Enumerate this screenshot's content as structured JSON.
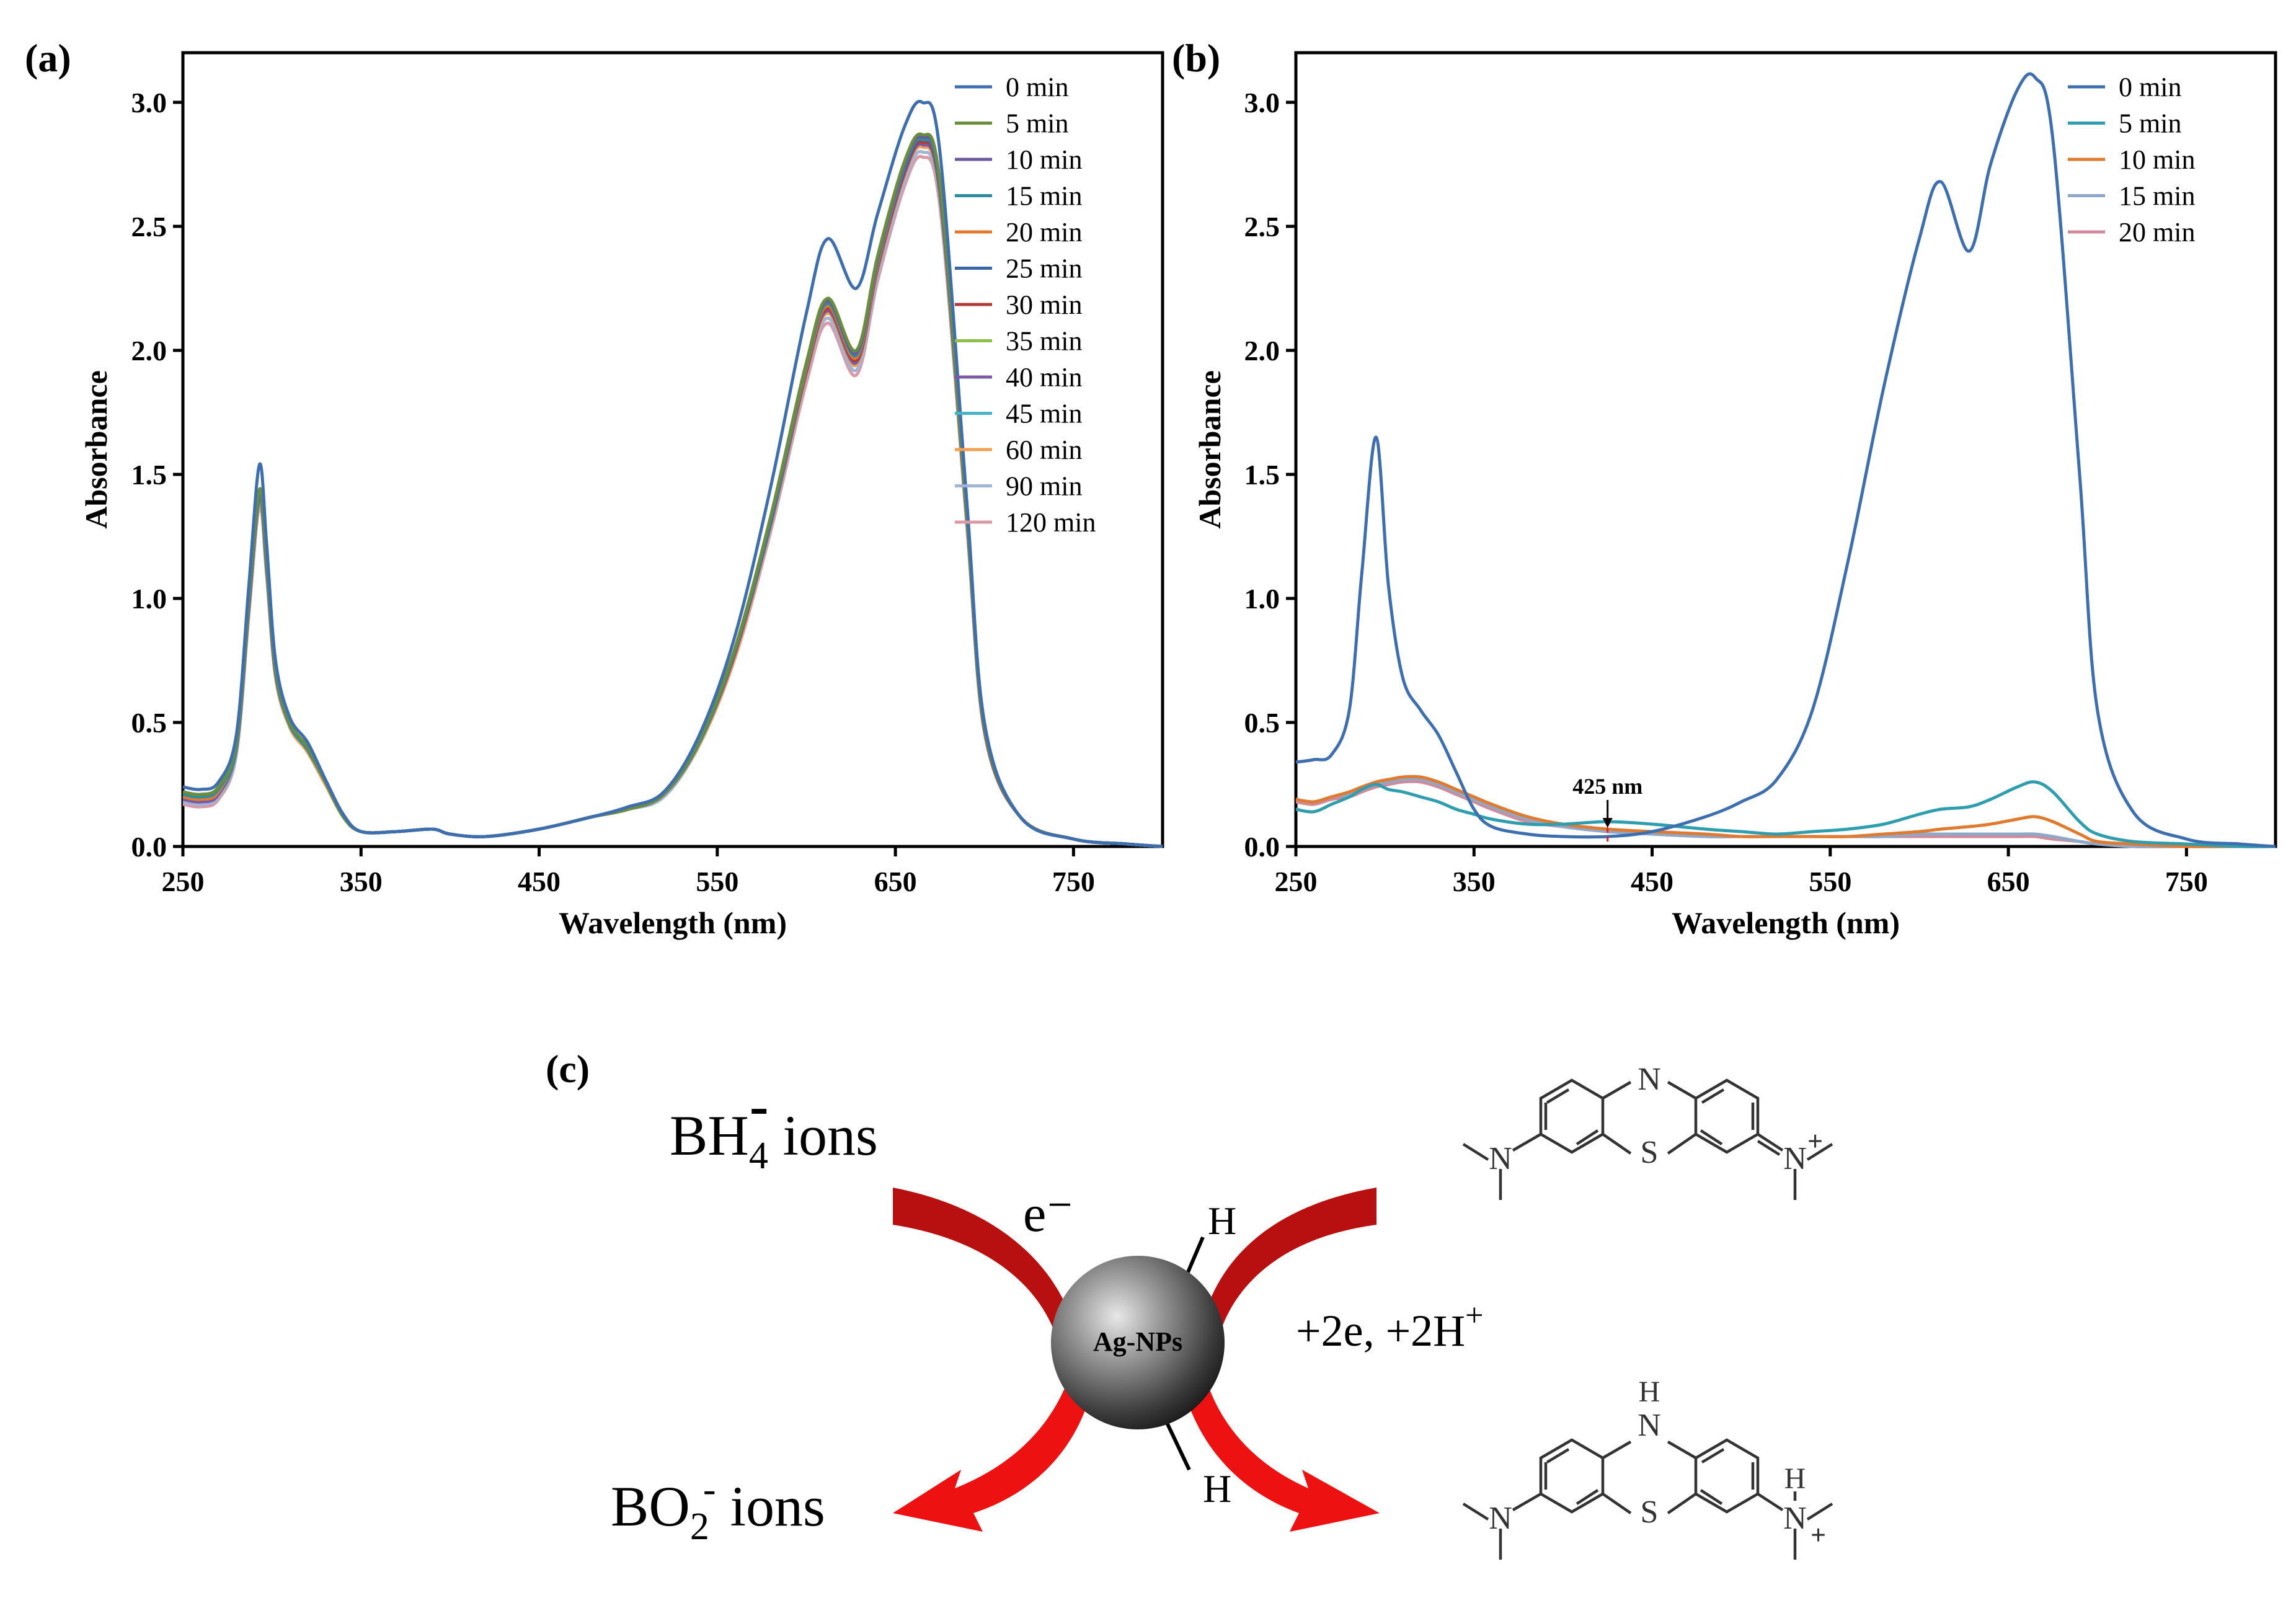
{
  "chart_data": [
    {
      "panel": "(a)",
      "type": "line",
      "xlabel": "Wavelength (nm)",
      "ylabel": "Absorbance",
      "xlim": [
        250,
        800
      ],
      "ylim": [
        0,
        3.2
      ],
      "xticks": [
        250,
        350,
        450,
        550,
        650,
        750
      ],
      "xtick_labels": [
        "250",
        "350",
        "450",
        "550",
        "650",
        "750"
      ],
      "yticks": [
        0,
        0.5,
        1.0,
        1.5,
        2.0,
        2.5,
        3.0
      ],
      "ytick_labels": [
        "0.0",
        "0.5",
        "1.0",
        "1.5",
        "2.0",
        "2.5",
        "3.0"
      ],
      "legend_position": "top-right",
      "x": [
        250,
        260,
        270,
        280,
        287,
        293,
        297,
        302,
        310,
        320,
        330,
        340,
        350,
        370,
        390,
        400,
        420,
        450,
        480,
        500,
        520,
        540,
        560,
        580,
        600,
        612,
        628,
        640,
        655,
        665,
        675,
        690,
        700,
        720,
        750,
        780,
        800
      ],
      "series": [
        {
          "name": "0 min",
          "color": "#3d6eb0",
          "values": [
            0.24,
            0.23,
            0.26,
            0.45,
            1.05,
            1.54,
            1.22,
            0.75,
            0.52,
            0.42,
            0.27,
            0.13,
            0.06,
            0.06,
            0.07,
            0.05,
            0.04,
            0.07,
            0.12,
            0.16,
            0.22,
            0.45,
            0.85,
            1.45,
            2.15,
            2.45,
            2.25,
            2.55,
            2.9,
            3.0,
            2.8,
            1.4,
            0.5,
            0.12,
            0.03,
            0.01,
            0.0
          ]
        },
        {
          "name": "5 min",
          "color": "#6b8e3e",
          "values": [
            0.22,
            0.21,
            0.24,
            0.42,
            1.0,
            1.44,
            1.16,
            0.72,
            0.5,
            0.4,
            0.26,
            0.12,
            0.06,
            0.06,
            0.07,
            0.05,
            0.04,
            0.07,
            0.12,
            0.15,
            0.21,
            0.43,
            0.8,
            1.33,
            1.95,
            2.21,
            2.0,
            2.38,
            2.76,
            2.87,
            2.68,
            1.35,
            0.48,
            0.12,
            0.03,
            0.01,
            0.0
          ]
        },
        {
          "name": "10 min",
          "color": "#6a5a9c",
          "values": [
            0.22,
            0.21,
            0.24,
            0.42,
            0.99,
            1.43,
            1.15,
            0.72,
            0.5,
            0.4,
            0.26,
            0.12,
            0.06,
            0.06,
            0.07,
            0.05,
            0.04,
            0.07,
            0.12,
            0.15,
            0.21,
            0.43,
            0.8,
            1.33,
            1.95,
            2.2,
            1.99,
            2.37,
            2.75,
            2.86,
            2.67,
            1.35,
            0.48,
            0.12,
            0.03,
            0.01,
            0.0
          ]
        },
        {
          "name": "15 min",
          "color": "#2e8e9e",
          "values": [
            0.21,
            0.2,
            0.23,
            0.41,
            0.98,
            1.42,
            1.14,
            0.71,
            0.49,
            0.39,
            0.26,
            0.12,
            0.06,
            0.06,
            0.07,
            0.05,
            0.04,
            0.07,
            0.12,
            0.15,
            0.21,
            0.42,
            0.79,
            1.32,
            1.94,
            2.19,
            1.98,
            2.36,
            2.74,
            2.85,
            2.66,
            1.34,
            0.48,
            0.12,
            0.03,
            0.01,
            0.0
          ]
        },
        {
          "name": "20 min",
          "color": "#e07a2e",
          "values": [
            0.2,
            0.19,
            0.22,
            0.41,
            0.98,
            1.42,
            1.14,
            0.71,
            0.49,
            0.39,
            0.26,
            0.12,
            0.06,
            0.06,
            0.07,
            0.05,
            0.04,
            0.07,
            0.12,
            0.15,
            0.21,
            0.42,
            0.79,
            1.32,
            1.93,
            2.18,
            1.97,
            2.35,
            2.74,
            2.86,
            2.66,
            1.34,
            0.48,
            0.12,
            0.03,
            0.01,
            0.0
          ]
        },
        {
          "name": "25 min",
          "color": "#3a66a8",
          "values": [
            0.2,
            0.19,
            0.22,
            0.4,
            0.97,
            1.41,
            1.13,
            0.7,
            0.49,
            0.39,
            0.26,
            0.12,
            0.06,
            0.06,
            0.07,
            0.05,
            0.04,
            0.07,
            0.12,
            0.15,
            0.21,
            0.42,
            0.79,
            1.31,
            1.93,
            2.18,
            1.97,
            2.35,
            2.73,
            2.85,
            2.65,
            1.34,
            0.48,
            0.12,
            0.03,
            0.01,
            0.0
          ]
        },
        {
          "name": "30 min",
          "color": "#b03a3a",
          "values": [
            0.2,
            0.19,
            0.22,
            0.4,
            0.97,
            1.41,
            1.13,
            0.7,
            0.49,
            0.39,
            0.26,
            0.12,
            0.06,
            0.06,
            0.07,
            0.05,
            0.04,
            0.07,
            0.12,
            0.15,
            0.21,
            0.42,
            0.78,
            1.31,
            1.92,
            2.17,
            1.96,
            2.34,
            2.72,
            2.84,
            2.64,
            1.33,
            0.47,
            0.12,
            0.03,
            0.01,
            0.0
          ]
        },
        {
          "name": "35 min",
          "color": "#8fbf4a",
          "values": [
            0.2,
            0.19,
            0.22,
            0.4,
            0.97,
            1.4,
            1.13,
            0.7,
            0.49,
            0.39,
            0.26,
            0.12,
            0.06,
            0.06,
            0.07,
            0.05,
            0.04,
            0.07,
            0.12,
            0.15,
            0.21,
            0.42,
            0.78,
            1.31,
            1.92,
            2.17,
            1.96,
            2.34,
            2.72,
            2.84,
            2.64,
            1.33,
            0.47,
            0.12,
            0.03,
            0.01,
            0.0
          ]
        },
        {
          "name": "40 min",
          "color": "#7a5aa8",
          "values": [
            0.19,
            0.18,
            0.21,
            0.4,
            0.96,
            1.4,
            1.12,
            0.7,
            0.49,
            0.39,
            0.26,
            0.12,
            0.06,
            0.06,
            0.07,
            0.05,
            0.04,
            0.07,
            0.12,
            0.15,
            0.21,
            0.42,
            0.78,
            1.3,
            1.91,
            2.16,
            1.95,
            2.33,
            2.71,
            2.83,
            2.63,
            1.33,
            0.47,
            0.12,
            0.03,
            0.01,
            0.0
          ]
        },
        {
          "name": "45 min",
          "color": "#4ab3c7",
          "values": [
            0.19,
            0.18,
            0.21,
            0.39,
            0.96,
            1.4,
            1.12,
            0.7,
            0.49,
            0.39,
            0.26,
            0.12,
            0.06,
            0.06,
            0.07,
            0.05,
            0.04,
            0.07,
            0.12,
            0.15,
            0.21,
            0.42,
            0.78,
            1.3,
            1.91,
            2.16,
            1.95,
            2.33,
            2.71,
            2.83,
            2.63,
            1.33,
            0.47,
            0.12,
            0.03,
            0.01,
            0.0
          ]
        },
        {
          "name": "60 min",
          "color": "#f0a050",
          "values": [
            0.19,
            0.18,
            0.21,
            0.39,
            0.95,
            1.39,
            1.11,
            0.69,
            0.48,
            0.38,
            0.25,
            0.12,
            0.06,
            0.06,
            0.07,
            0.05,
            0.04,
            0.07,
            0.12,
            0.15,
            0.21,
            0.41,
            0.77,
            1.29,
            1.9,
            2.15,
            1.94,
            2.32,
            2.7,
            2.82,
            2.62,
            1.32,
            0.47,
            0.12,
            0.03,
            0.01,
            0.0
          ]
        },
        {
          "name": "90 min",
          "color": "#9fb4d6",
          "values": [
            0.18,
            0.17,
            0.2,
            0.38,
            0.94,
            1.38,
            1.1,
            0.69,
            0.48,
            0.38,
            0.25,
            0.12,
            0.06,
            0.06,
            0.07,
            0.05,
            0.04,
            0.07,
            0.12,
            0.15,
            0.2,
            0.41,
            0.77,
            1.28,
            1.89,
            2.13,
            1.92,
            2.3,
            2.68,
            2.8,
            2.6,
            1.31,
            0.46,
            0.12,
            0.03,
            0.01,
            0.0
          ]
        },
        {
          "name": "120 min",
          "color": "#d99aa5",
          "values": [
            0.17,
            0.16,
            0.19,
            0.37,
            0.93,
            1.37,
            1.09,
            0.68,
            0.48,
            0.38,
            0.25,
            0.12,
            0.06,
            0.06,
            0.07,
            0.05,
            0.04,
            0.07,
            0.12,
            0.15,
            0.2,
            0.41,
            0.76,
            1.27,
            1.87,
            2.11,
            1.9,
            2.28,
            2.66,
            2.78,
            2.58,
            1.3,
            0.46,
            0.12,
            0.03,
            0.01,
            0.0
          ]
        }
      ]
    },
    {
      "panel": "(b)",
      "type": "line",
      "xlabel": "Wavelength (nm)",
      "ylabel": "Absorbance",
      "xlim": [
        250,
        800
      ],
      "ylim": [
        0,
        3.2
      ],
      "xticks": [
        250,
        350,
        450,
        550,
        650,
        750
      ],
      "xtick_labels": [
        "250",
        "350",
        "450",
        "550",
        "650",
        "750"
      ],
      "yticks": [
        0,
        0.5,
        1.0,
        1.5,
        2.0,
        2.5,
        3.0
      ],
      "ytick_labels": [
        "0.0",
        "0.5",
        "1.0",
        "1.5",
        "2.0",
        "2.5",
        "3.0"
      ],
      "legend_position": "top-right",
      "annotation": {
        "text": "425 nm",
        "x": 425,
        "y": 0.1
      },
      "x": [
        250,
        260,
        270,
        280,
        287,
        295,
        302,
        310,
        320,
        330,
        340,
        350,
        360,
        380,
        400,
        425,
        450,
        480,
        500,
        520,
        540,
        560,
        580,
        600,
        612,
        628,
        640,
        655,
        665,
        675,
        690,
        700,
        720,
        750,
        780,
        800
      ],
      "series": [
        {
          "name": "0 min",
          "color": "#3d6eb0",
          "values": [
            0.34,
            0.35,
            0.37,
            0.55,
            1.1,
            1.65,
            1.05,
            0.68,
            0.55,
            0.45,
            0.3,
            0.15,
            0.08,
            0.05,
            0.04,
            0.04,
            0.06,
            0.12,
            0.18,
            0.27,
            0.55,
            1.15,
            1.85,
            2.45,
            2.68,
            2.4,
            2.75,
            3.05,
            3.1,
            2.85,
            1.5,
            0.55,
            0.14,
            0.03,
            0.01,
            0.0
          ]
        },
        {
          "name": "5 min",
          "color": "#2e9eae",
          "values": [
            0.15,
            0.14,
            0.17,
            0.2,
            0.23,
            0.25,
            0.23,
            0.22,
            0.2,
            0.18,
            0.15,
            0.13,
            0.11,
            0.09,
            0.09,
            0.1,
            0.09,
            0.07,
            0.06,
            0.05,
            0.06,
            0.07,
            0.09,
            0.13,
            0.15,
            0.16,
            0.19,
            0.24,
            0.26,
            0.22,
            0.1,
            0.05,
            0.02,
            0.01,
            0.0,
            0.0
          ]
        },
        {
          "name": "10 min",
          "color": "#e07a2e",
          "values": [
            0.19,
            0.18,
            0.2,
            0.22,
            0.24,
            0.26,
            0.27,
            0.28,
            0.28,
            0.26,
            0.23,
            0.2,
            0.17,
            0.12,
            0.09,
            0.07,
            0.06,
            0.05,
            0.04,
            0.04,
            0.04,
            0.04,
            0.05,
            0.06,
            0.07,
            0.08,
            0.09,
            0.11,
            0.12,
            0.1,
            0.05,
            0.02,
            0.01,
            0.0,
            0.0,
            0.0
          ]
        },
        {
          "name": "15 min",
          "color": "#8fa8c8",
          "values": [
            0.19,
            0.18,
            0.2,
            0.21,
            0.23,
            0.25,
            0.26,
            0.27,
            0.27,
            0.25,
            0.22,
            0.19,
            0.16,
            0.11,
            0.08,
            0.06,
            0.05,
            0.04,
            0.04,
            0.04,
            0.04,
            0.04,
            0.04,
            0.05,
            0.05,
            0.05,
            0.05,
            0.05,
            0.05,
            0.04,
            0.02,
            0.01,
            0.0,
            0.0,
            0.0,
            0.0
          ]
        },
        {
          "name": "20 min",
          "color": "#d08a9a",
          "values": [
            0.18,
            0.17,
            0.19,
            0.2,
            0.22,
            0.24,
            0.25,
            0.26,
            0.26,
            0.24,
            0.21,
            0.18,
            0.15,
            0.1,
            0.08,
            0.06,
            0.05,
            0.04,
            0.04,
            0.04,
            0.04,
            0.04,
            0.04,
            0.04,
            0.04,
            0.04,
            0.04,
            0.04,
            0.04,
            0.03,
            0.02,
            0.01,
            0.0,
            0.0,
            0.0,
            0.0
          ]
        }
      ]
    }
  ],
  "scheme": {
    "panel_label": "(c)",
    "bh4_text": "BH",
    "bh4_sub": "4",
    "bh4_sup": "-",
    "bh4_tail": " ions",
    "bo2_text": "BO",
    "bo2_sub": "2",
    "bo2_sup": "-",
    "bo2_tail": " ions",
    "electron": "e⁻",
    "h_top": "H",
    "h_bottom": "H",
    "particle_label": "Ag-NPs",
    "reaction_text": "+2e, +2H",
    "reaction_sup": "+",
    "mb_ring_N": "N",
    "mb_ring_S": "S",
    "mb_left_N": "N",
    "mb_right_N": "N",
    "mb_plus": "+",
    "leuco_ring_H": "H",
    "leuco_ring_N": "N",
    "leuco_ring_S": "S",
    "leuco_left_N": "N",
    "leuco_right_H": "H",
    "leuco_right_N": "N",
    "leuco_plus": "+",
    "arrow_dark_color": "#b01010",
    "arrow_bright_color": "#ee1111"
  }
}
